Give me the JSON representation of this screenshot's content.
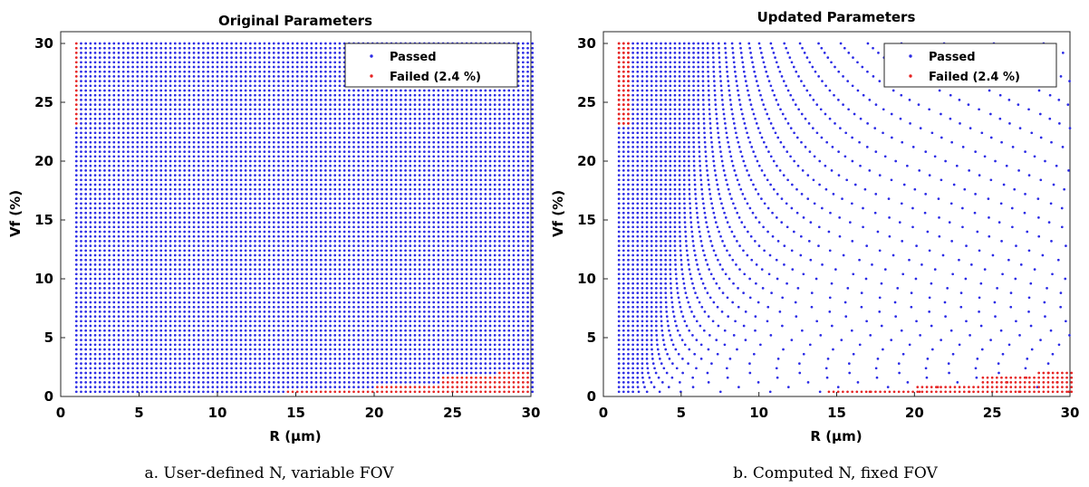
{
  "chart_data": [
    {
      "type": "scatter",
      "title": "Original Parameters",
      "xlabel": "R (µm)",
      "ylabel": "Vf (%)",
      "xlim": [
        0,
        30
      ],
      "ylim": [
        0,
        31
      ],
      "xticks": [
        0,
        5,
        10,
        15,
        20,
        25,
        30
      ],
      "yticks": [
        0,
        5,
        10,
        15,
        20,
        25,
        30
      ],
      "grid": false,
      "legend_position": "top-right",
      "caption": "a. User-defined N, variable FOV",
      "series": [
        {
          "name": "Passed",
          "color": "#2a2ae6",
          "grid": {
            "x_from": 1,
            "x_to": 30,
            "x_step": 0.3,
            "y_from": 0.4,
            "y_to": 30,
            "y_step": 0.4
          }
        },
        {
          "name": "Failed (2.4 %)",
          "color": "#e62222",
          "regions": [
            {
              "x_from": 1,
              "x_to": 1,
              "y_from": 23.2,
              "y_to": 30
            },
            {
              "x_from": 14.5,
              "x_to": 19.9,
              "y_from": 0.4,
              "y_to": 0.4
            },
            {
              "x_from": 20.2,
              "x_to": 24.1,
              "y_from": 0.4,
              "y_to": 0.8
            },
            {
              "x_from": 24.4,
              "x_to": 27.7,
              "y_from": 0.4,
              "y_to": 1.6
            },
            {
              "x_from": 28.0,
              "x_to": 30,
              "y_from": 0.4,
              "y_to": 2.0
            }
          ]
        }
      ]
    },
    {
      "type": "scatter",
      "title": "Updated Parameters",
      "xlabel": "R (µm)",
      "ylabel": "Vf (%)",
      "xlim": [
        0,
        30
      ],
      "ylim": [
        0,
        31
      ],
      "xticks": [
        0,
        5,
        10,
        15,
        20,
        25,
        30
      ],
      "yticks": [
        0,
        5,
        10,
        15,
        20,
        25,
        30
      ],
      "grid": false,
      "legend_position": "top-right",
      "caption": "b. Computed N, fixed FOV",
      "series": [
        {
          "name": "Passed",
          "color": "#2a2ae6",
          "fan": {
            "y_step": 0.4,
            "y_max": 30,
            "x_max": 30,
            "x_spacing_rule": "N fixed by FOV; points lie on curves Vf = N*R^2/const"
          }
        },
        {
          "name": "Failed (2.4 %)",
          "color": "#e62222",
          "regions": [
            {
              "x_from": 1,
              "x_to": 1.6,
              "y_from": 23.2,
              "y_to": 30
            },
            {
              "x_from": 14.5,
              "x_to": 19.9,
              "y_from": 0.4,
              "y_to": 0.4
            },
            {
              "x_from": 20.2,
              "x_to": 24.1,
              "y_from": 0.4,
              "y_to": 0.8
            },
            {
              "x_from": 24.4,
              "x_to": 27.7,
              "y_from": 0.4,
              "y_to": 1.6
            },
            {
              "x_from": 28.0,
              "x_to": 30,
              "y_from": 0.4,
              "y_to": 2.0
            }
          ]
        }
      ]
    }
  ]
}
